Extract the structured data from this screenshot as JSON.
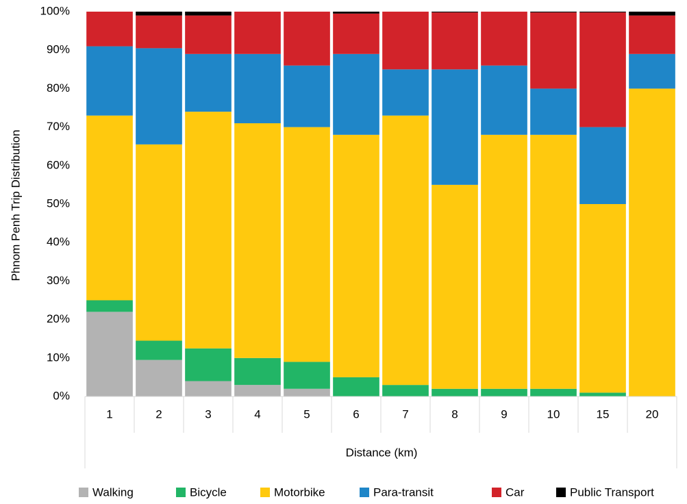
{
  "chart_data": {
    "type": "stacked_bar",
    "ylabel": "Phnom Penh Trip Distribution",
    "xlabel": "Distance (km)",
    "categories": [
      "1",
      "2",
      "3",
      "4",
      "5",
      "6",
      "7",
      "8",
      "9",
      "10",
      "15",
      "20"
    ],
    "series": [
      {
        "name": "Walking",
        "color": "#b3b3b3",
        "values": [
          22,
          9.5,
          4,
          3,
          2,
          0,
          0,
          0,
          0,
          0,
          0,
          0
        ]
      },
      {
        "name": "Bicycle",
        "color": "#22b566",
        "values": [
          3,
          5,
          8.5,
          7,
          7,
          5,
          3,
          2,
          2,
          2,
          1,
          0
        ]
      },
      {
        "name": "Motorbike",
        "color": "#ffc90e",
        "values": [
          48,
          51,
          61.5,
          61,
          61,
          63,
          70,
          53,
          66,
          66,
          49,
          80
        ]
      },
      {
        "name": "Para-transit",
        "color": "#1f86c8",
        "values": [
          18,
          25,
          15,
          18,
          16,
          21,
          12,
          30,
          18,
          12,
          20,
          9
        ]
      },
      {
        "name": "Car",
        "color": "#d2232a",
        "values": [
          9,
          8.5,
          10,
          11,
          14,
          10.5,
          15,
          14.8,
          14,
          19.8,
          29.8,
          10
        ]
      },
      {
        "name": "Public Transport",
        "color": "#000000",
        "values": [
          0,
          1,
          1,
          0,
          0,
          0.5,
          0,
          0.2,
          0,
          0.2,
          0.2,
          1
        ]
      }
    ],
    "ylim": [
      0,
      100
    ],
    "yticks": [
      {
        "value": 0,
        "label": "0%"
      },
      {
        "value": 10,
        "label": "10%"
      },
      {
        "value": 20,
        "label": "20%"
      },
      {
        "value": 30,
        "label": "30%"
      },
      {
        "value": 40,
        "label": "40%"
      },
      {
        "value": 50,
        "label": "50%"
      },
      {
        "value": 60,
        "label": "60%"
      },
      {
        "value": 70,
        "label": "70%"
      },
      {
        "value": 80,
        "label": "80%"
      },
      {
        "value": 90,
        "label": "90%"
      },
      {
        "value": 100,
        "label": "100%"
      }
    ],
    "legend": "bottom"
  }
}
